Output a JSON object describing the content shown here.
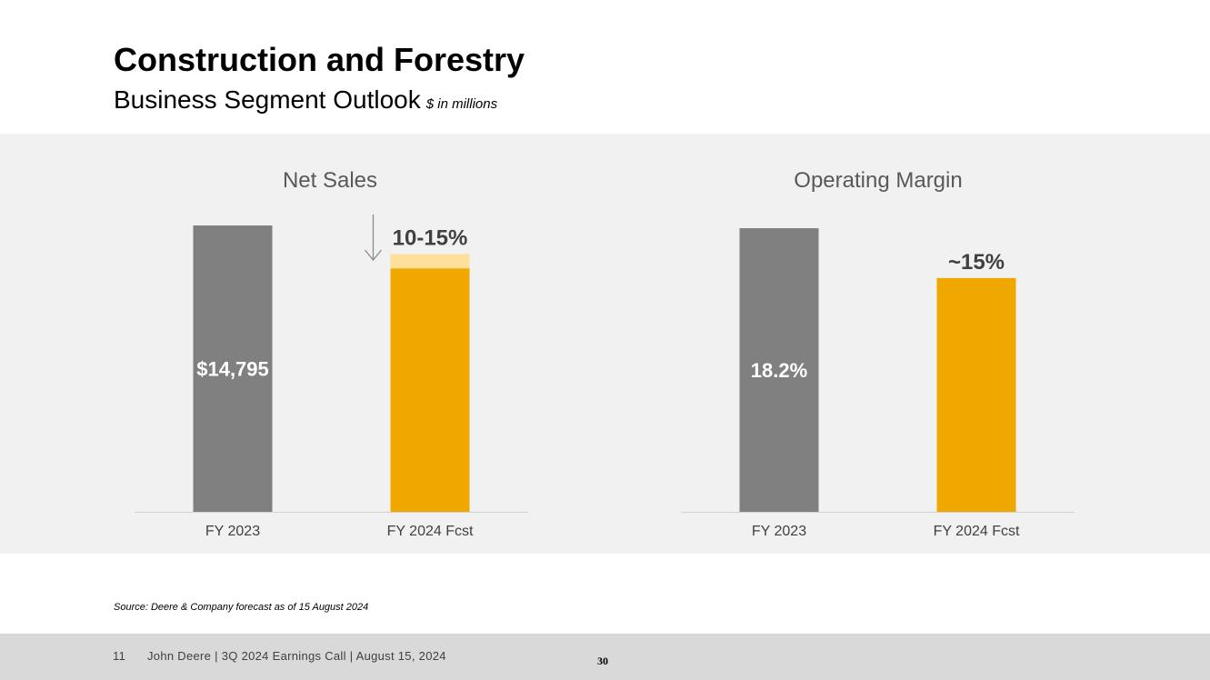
{
  "slide": {
    "title": "Construction and Forestry",
    "subtitle": "Business Segment Outlook",
    "units": "$ in millions",
    "source": "Source: Deere & Company forecast as of 15 August 2024"
  },
  "footer": {
    "slide_number": "11",
    "text": "John Deere | 3Q 2024 Earnings Call | August 15, 2024",
    "page_number": "30"
  },
  "colors": {
    "actual": "#808080",
    "forecast": "#f0a800",
    "forecast_range": "#ffdf99",
    "panel": "#f1f1f1"
  },
  "chart_data": [
    {
      "type": "bar",
      "title": "Net Sales",
      "categories": [
        "FY 2023",
        "FY 2024 Fcst"
      ],
      "values": [
        14795,
        12576
      ],
      "range_top": 13316,
      "ylim": [
        0,
        14795
      ],
      "data_labels": [
        "$14,795",
        "10-15%"
      ],
      "annotation": "down-arrow-icon",
      "grid": false,
      "legend": "none"
    },
    {
      "type": "bar",
      "title": "Operating Margin",
      "categories": [
        "FY 2023",
        "FY 2024 Fcst"
      ],
      "values": [
        18.2,
        15
      ],
      "ylim": [
        0,
        18.2
      ],
      "data_labels": [
        "18.2%",
        "~15%"
      ],
      "grid": false,
      "legend": "none"
    }
  ]
}
